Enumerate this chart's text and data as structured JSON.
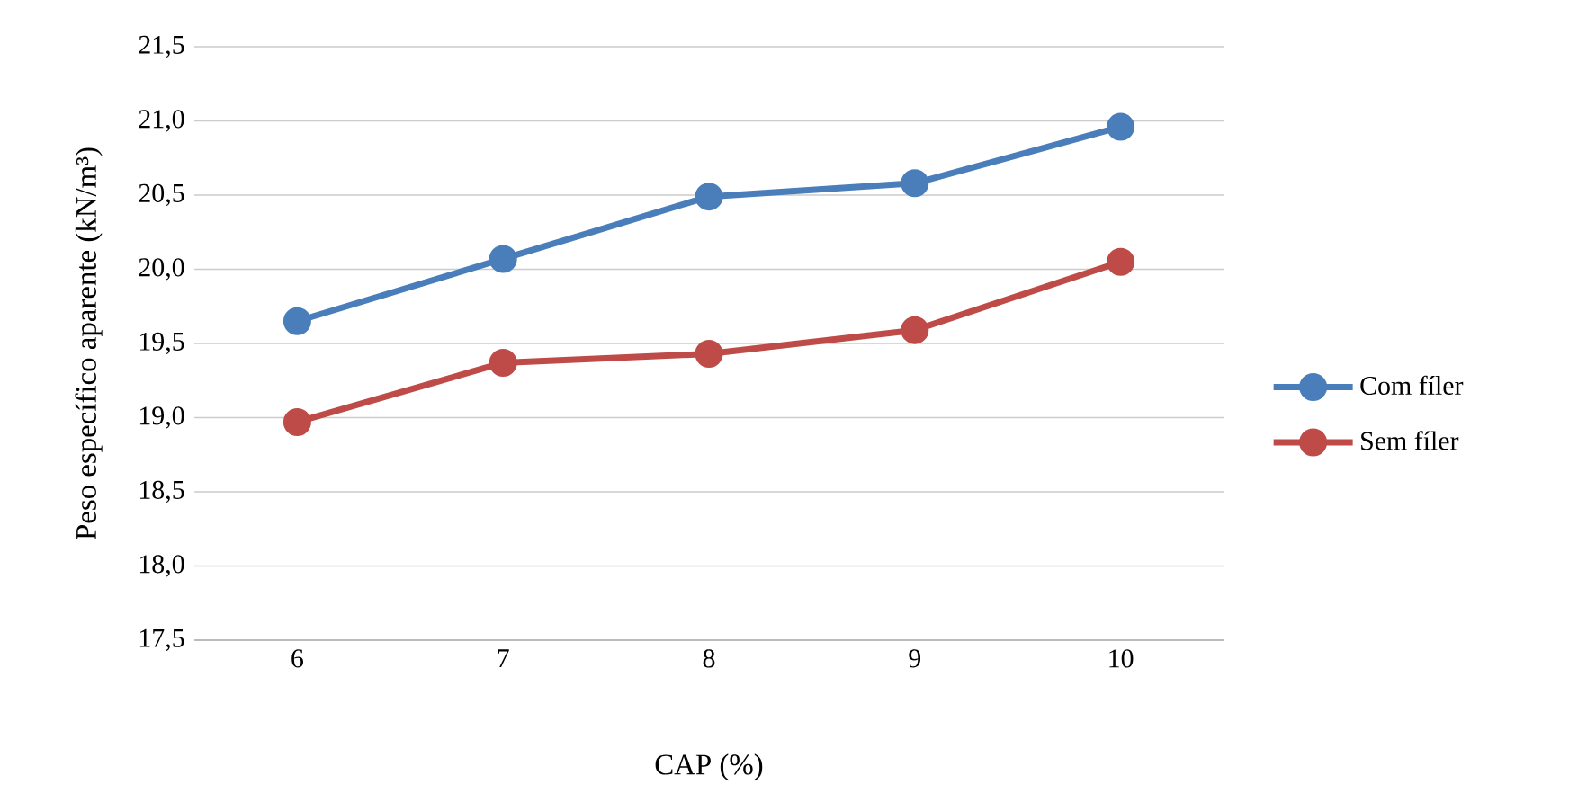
{
  "chart_data": {
    "type": "line",
    "xlabel": "CAP (%)",
    "ylabel": "Peso específico aparente (kN/m³)",
    "categories": [
      "6",
      "7",
      "8",
      "9",
      "10"
    ],
    "series": [
      {
        "name": "Com fíler",
        "color": "#4a7ebb",
        "values": [
          19.65,
          20.07,
          20.49,
          20.58,
          20.96
        ]
      },
      {
        "name": "Sem fíler",
        "color": "#be4b48",
        "values": [
          18.97,
          19.37,
          19.43,
          19.59,
          20.05
        ]
      }
    ],
    "ylim": [
      17.5,
      21.5
    ],
    "yticks": [
      {
        "value": 17.5,
        "label": "17,5"
      },
      {
        "value": 18.0,
        "label": "18,0"
      },
      {
        "value": 18.5,
        "label": "18,5"
      },
      {
        "value": 19.0,
        "label": "19,0"
      },
      {
        "value": 19.5,
        "label": "19,5"
      },
      {
        "value": 20.0,
        "label": "20,0"
      },
      {
        "value": 20.5,
        "label": "20,5"
      },
      {
        "value": 21.0,
        "label": "21,0"
      },
      {
        "value": 21.5,
        "label": "21,5"
      }
    ],
    "grid": "y",
    "legend": "right",
    "marker": "circle",
    "line_style": "solid"
  }
}
